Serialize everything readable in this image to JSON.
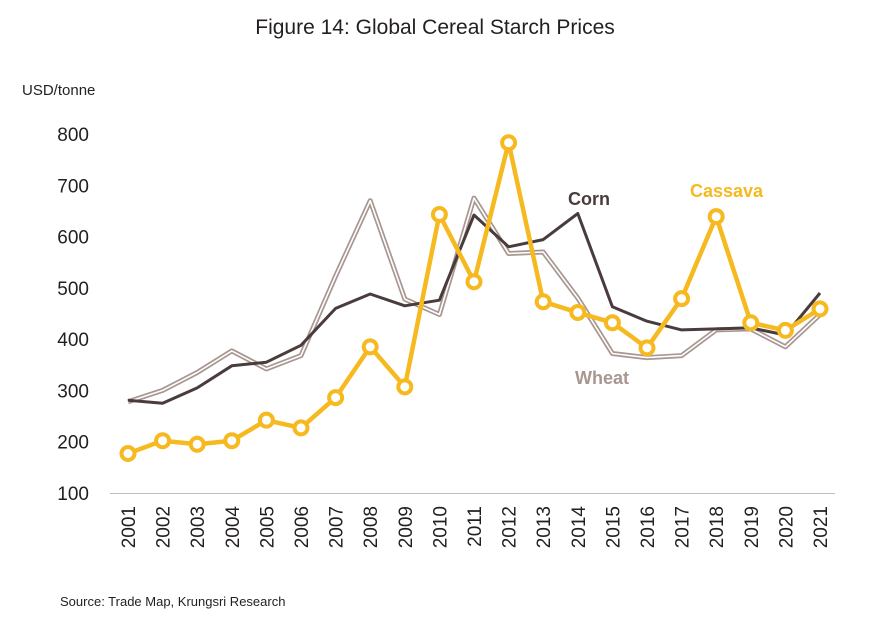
{
  "chart_data": {
    "type": "line",
    "title": "Figure 14: Global Cereal Starch Prices",
    "ylabel": "USD/tonne",
    "source": "Source: Trade Map, Krungsri Research",
    "ylim": [
      100,
      800
    ],
    "yticks": [
      100,
      200,
      300,
      400,
      500,
      600,
      700,
      800
    ],
    "categories": [
      "2001",
      "2002",
      "2003",
      "2004",
      "2005",
      "2006",
      "2007",
      "2008",
      "2009",
      "2010",
      "2011",
      "2012",
      "2013",
      "2014",
      "2015",
      "2016",
      "2017",
      "2018",
      "2019",
      "2020",
      "2021"
    ],
    "legend": "inline labels near series",
    "grid": false,
    "series": [
      {
        "name": "Wheat",
        "style": "double-line",
        "color": "#a89690",
        "values": [
          278,
          300,
          335,
          377,
          342,
          368,
          523,
          670,
          478,
          448,
          675,
          567,
          570,
          480,
          372,
          364,
          368,
          418,
          420,
          385,
          448
        ]
      },
      {
        "name": "Corn",
        "style": "line",
        "color": "#4a3c3c",
        "values": [
          281,
          275,
          305,
          348,
          355,
          388,
          460,
          488,
          465,
          476,
          642,
          580,
          594,
          645,
          463,
          435,
          418,
          420,
          422,
          408,
          490
        ]
      },
      {
        "name": "Cassava",
        "style": "line-circles",
        "color": "#f7b920",
        "values": [
          177,
          202,
          195,
          202,
          242,
          227,
          286,
          385,
          307,
          643,
          512,
          783,
          473,
          452,
          432,
          383,
          479,
          639,
          432,
          417,
          459
        ]
      }
    ]
  }
}
